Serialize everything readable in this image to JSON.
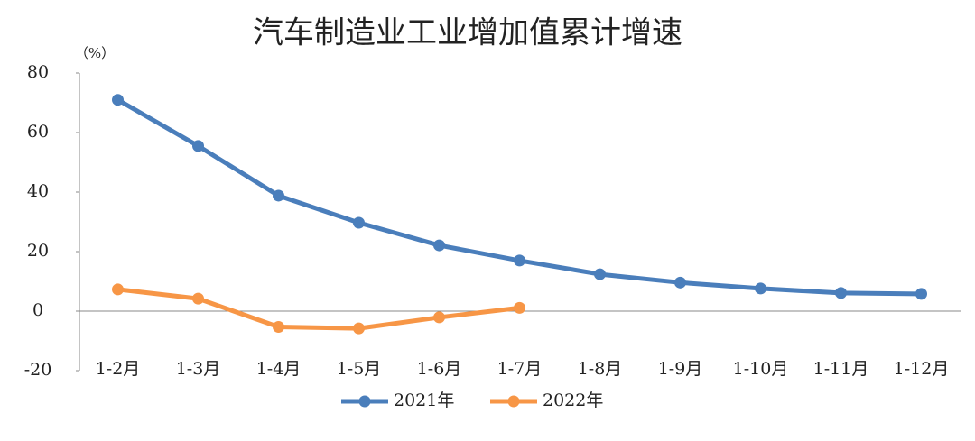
{
  "chart_data": {
    "type": "line",
    "title": "汽车制造业工业增加值累计增速",
    "y_unit_label": "（%）",
    "categories": [
      "1-2月",
      "1-3月",
      "1-4月",
      "1-5月",
      "1-6月",
      "1-7月",
      "1-8月",
      "1-9月",
      "1-10月",
      "1-11月",
      "1-12月"
    ],
    "series": [
      {
        "name": "2021年",
        "color": "#4a7ebb",
        "values": [
          71,
          55.5,
          38.8,
          29.7,
          22.1,
          17,
          12.4,
          9.6,
          7.6,
          6.1,
          5.8
        ]
      },
      {
        "name": "2022年",
        "color": "#f79646",
        "values": [
          7.3,
          4.2,
          -5.3,
          -5.8,
          -2.1,
          1.1,
          null,
          null,
          null,
          null,
          null
        ]
      }
    ],
    "ylim": [
      -20,
      80
    ],
    "yticks": [
      -20,
      0,
      20,
      40,
      60,
      80
    ],
    "negative_tick_color": "#ff0000",
    "grid": false,
    "legend": "bottom"
  }
}
